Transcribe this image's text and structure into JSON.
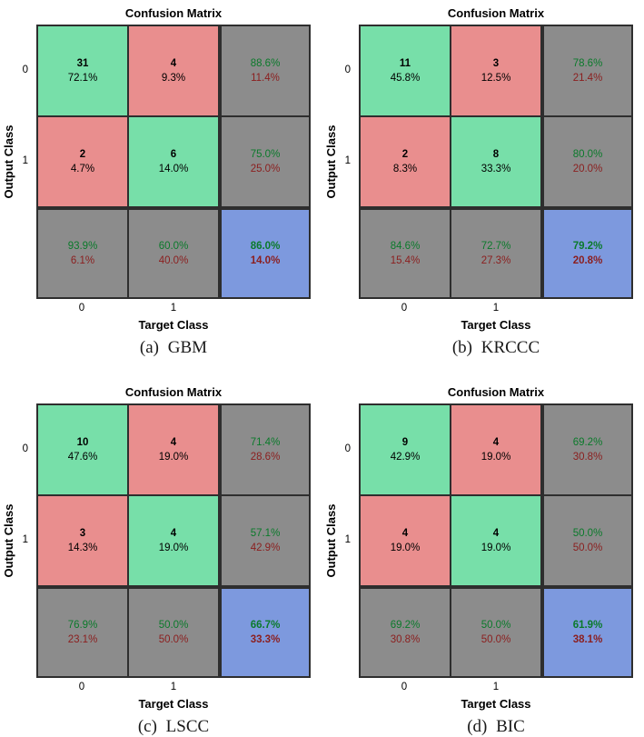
{
  "colors": {
    "green_cell": "#77DFA9",
    "red_cell": "#E98E8E",
    "gray_cell": "#8C8C8C",
    "blue_cell": "#7D99DE",
    "green_text": "#0B7A2B",
    "red_text": "#8B1E1E",
    "grid_line": "#2e2e2e"
  },
  "shared": {
    "title": "Confusion Matrix",
    "xlabel": "Target Class",
    "ylabel": "Output Class",
    "classes": [
      "0",
      "1"
    ]
  },
  "chart_data": [
    {
      "type": "heatmap",
      "title": "Confusion Matrix",
      "caption": "(a) GBM",
      "xlabel": "Target Class",
      "ylabel": "Output Class",
      "classes": [
        "0",
        "1"
      ],
      "matrix": [
        [
          31,
          4
        ],
        [
          2,
          6
        ]
      ],
      "matrix_pct": [
        [
          "72.1%",
          "9.3%"
        ],
        [
          "4.7%",
          "14.0%"
        ]
      ],
      "row_summary": [
        [
          "88.6%",
          "11.4%"
        ],
        [
          "75.0%",
          "25.0%"
        ]
      ],
      "col_summary": [
        [
          "93.9%",
          "6.1%"
        ],
        [
          "60.0%",
          "40.0%"
        ]
      ],
      "total": [
        "86.0%",
        "14.0%"
      ]
    },
    {
      "type": "heatmap",
      "title": "Confusion Matrix",
      "caption": "(b) KRCCC",
      "xlabel": "Target Class",
      "ylabel": "Output Class",
      "classes": [
        "0",
        "1"
      ],
      "matrix": [
        [
          11,
          3
        ],
        [
          2,
          8
        ]
      ],
      "matrix_pct": [
        [
          "45.8%",
          "12.5%"
        ],
        [
          "8.3%",
          "33.3%"
        ]
      ],
      "row_summary": [
        [
          "78.6%",
          "21.4%"
        ],
        [
          "80.0%",
          "20.0%"
        ]
      ],
      "col_summary": [
        [
          "84.6%",
          "15.4%"
        ],
        [
          "72.7%",
          "27.3%"
        ]
      ],
      "total": [
        "79.2%",
        "20.8%"
      ]
    },
    {
      "type": "heatmap",
      "title": "Confusion Matrix",
      "caption": "(c) LSCC",
      "xlabel": "Target Class",
      "ylabel": "Output Class",
      "classes": [
        "0",
        "1"
      ],
      "matrix": [
        [
          10,
          4
        ],
        [
          3,
          4
        ]
      ],
      "matrix_pct": [
        [
          "47.6%",
          "19.0%"
        ],
        [
          "14.3%",
          "19.0%"
        ]
      ],
      "row_summary": [
        [
          "71.4%",
          "28.6%"
        ],
        [
          "57.1%",
          "42.9%"
        ]
      ],
      "col_summary": [
        [
          "76.9%",
          "23.1%"
        ],
        [
          "50.0%",
          "50.0%"
        ]
      ],
      "total": [
        "66.7%",
        "33.3%"
      ]
    },
    {
      "type": "heatmap",
      "title": "Confusion Matrix",
      "caption": "(d) BIC",
      "xlabel": "Target Class",
      "ylabel": "Output Class",
      "classes": [
        "0",
        "1"
      ],
      "matrix": [
        [
          9,
          4
        ],
        [
          4,
          4
        ]
      ],
      "matrix_pct": [
        [
          "42.9%",
          "19.0%"
        ],
        [
          "19.0%",
          "19.0%"
        ]
      ],
      "row_summary": [
        [
          "69.2%",
          "30.8%"
        ],
        [
          "50.0%",
          "50.0%"
        ]
      ],
      "col_summary": [
        [
          "69.2%",
          "30.8%"
        ],
        [
          "50.0%",
          "50.0%"
        ]
      ],
      "total": [
        "61.9%",
        "38.1%"
      ]
    }
  ]
}
